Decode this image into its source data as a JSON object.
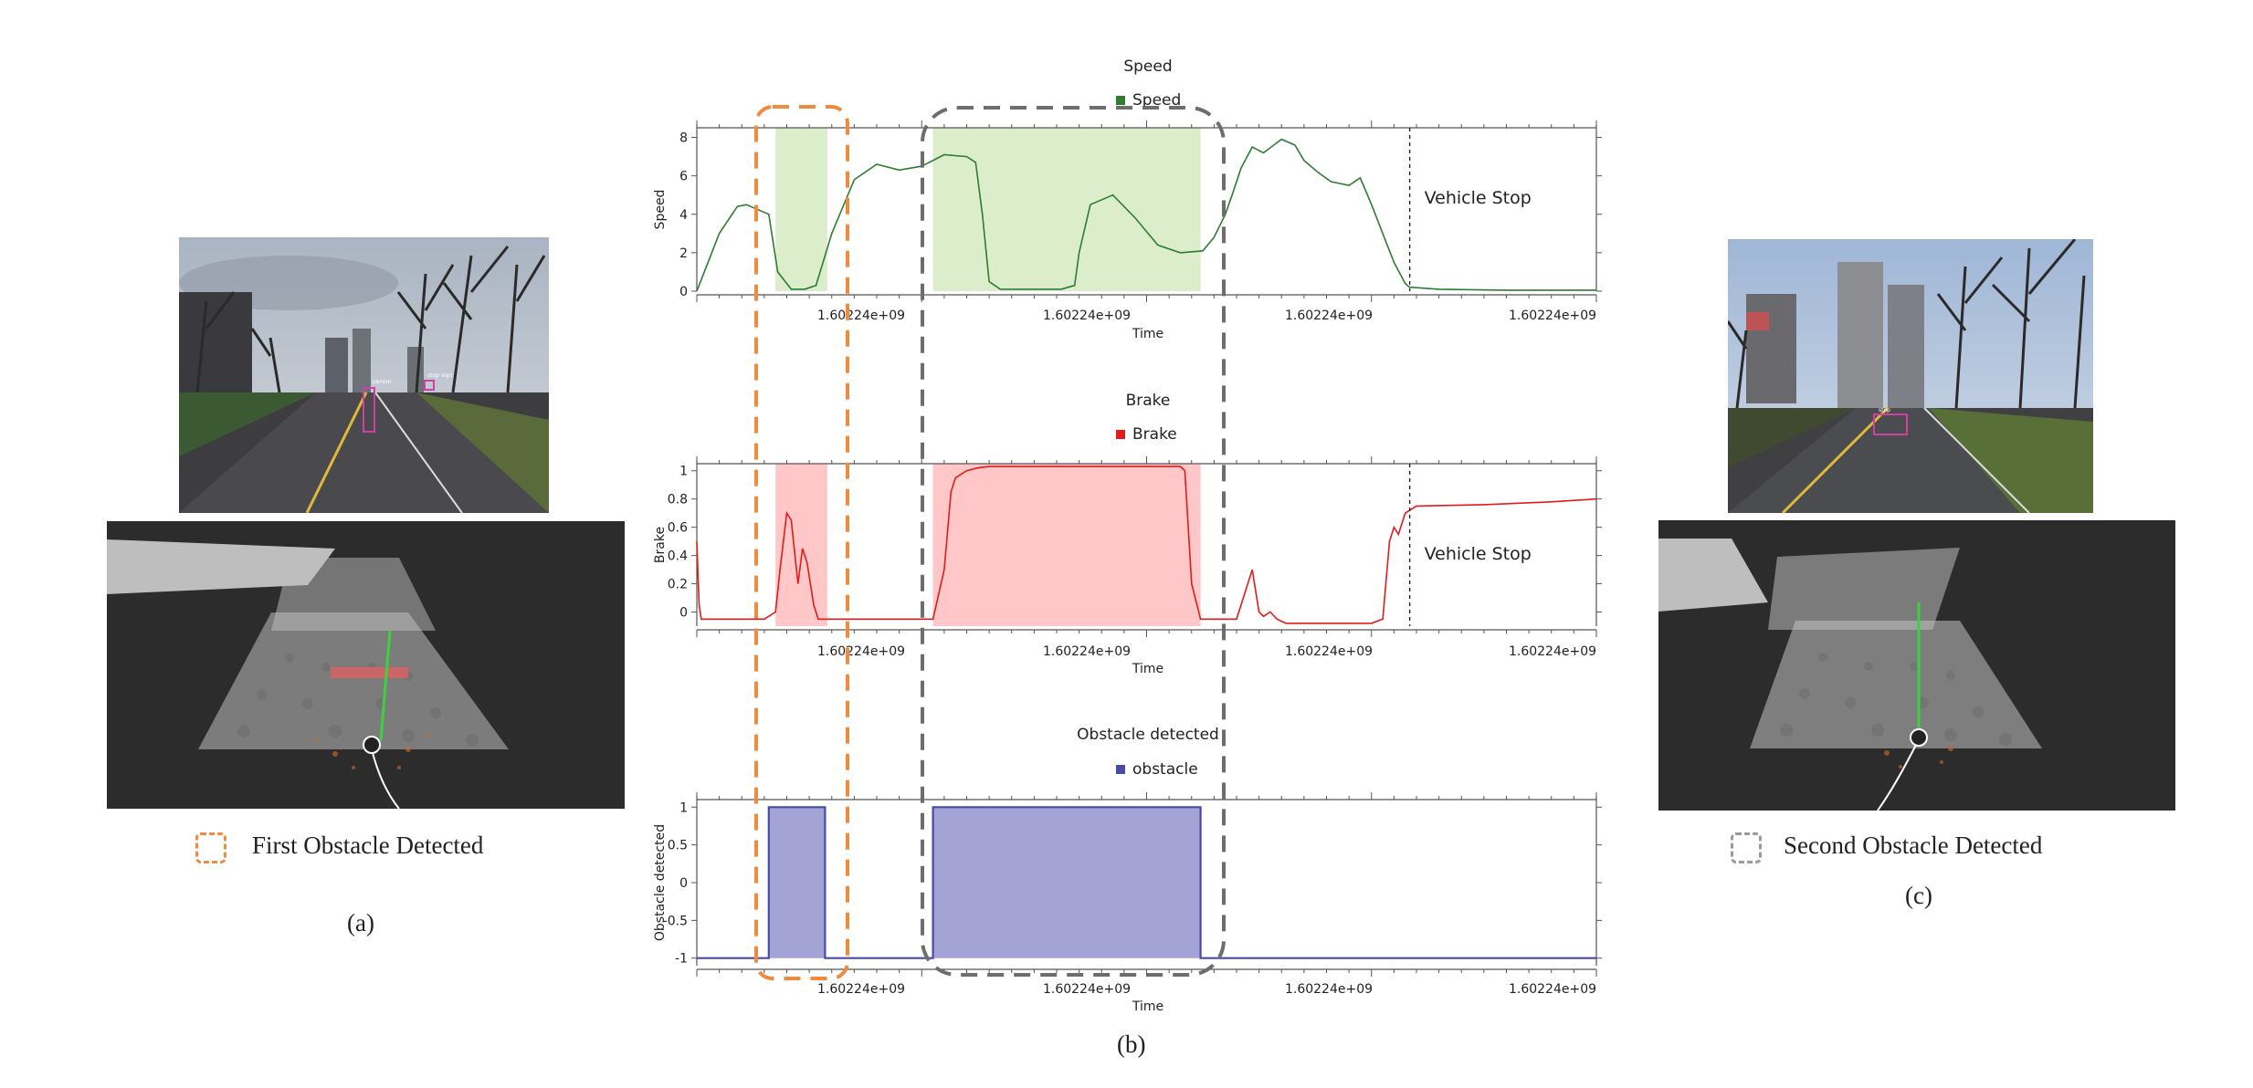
{
  "captions": {
    "a": "(a)",
    "b": "(b)",
    "c": "(c)",
    "first": "First Obstacle Detected",
    "second": "Second Obstacle Detected"
  },
  "camera_labels": {
    "left_person": "person",
    "left_sign": "stop sign",
    "right_obj": "stop"
  },
  "colors": {
    "speed": "#2e7d32",
    "speed_fill": "#d9ecc8",
    "brake": "#e21b1b",
    "brake_fill": "#ffc4c4",
    "obstacle": "#4a4aa8",
    "obstacle_fill": "#a3a3d6",
    "first_box": "#f08a3c",
    "second_box": "#6d6d6d"
  },
  "chart_data": [
    {
      "type": "line",
      "title": "Speed",
      "legend": "Speed",
      "xlabel": "Time",
      "ylabel": "Speed",
      "ylim": [
        0,
        8.5
      ],
      "yticks": [
        "0",
        "2",
        "4",
        "6",
        "8"
      ],
      "xticks": [
        "1.60224e+09",
        "1.60224e+09",
        "1.60224e+09",
        "1.60224e+09"
      ],
      "annotation": "Vehicle Stop",
      "x": [
        0,
        0.05,
        0.1,
        0.18,
        0.22,
        0.32,
        0.36,
        0.42,
        0.48,
        0.53,
        0.6,
        0.7,
        0.8,
        0.9,
        1.0,
        1.1,
        1.2,
        1.24,
        1.27,
        1.3,
        1.35,
        1.4,
        1.45,
        1.5,
        1.55,
        1.62,
        1.68,
        1.7,
        1.75,
        1.85,
        1.95,
        2.05,
        2.15,
        2.25,
        2.3,
        2.35,
        2.38,
        2.42,
        2.47,
        2.52,
        2.6,
        2.66,
        2.7,
        2.76,
        2.82,
        2.9,
        2.95,
        3.0,
        3.05,
        3.1,
        3.15,
        3.17,
        3.18,
        3.3,
        3.6,
        4.0
      ],
      "y": [
        0,
        1.5,
        3.0,
        4.4,
        4.5,
        4.0,
        1.0,
        0.1,
        0.1,
        0.3,
        3.0,
        5.8,
        6.6,
        6.3,
        6.5,
        7.1,
        7.0,
        6.7,
        4.0,
        0.5,
        0.1,
        0.1,
        0.1,
        0.1,
        0.1,
        0.1,
        0.3,
        2.0,
        4.5,
        5.0,
        3.8,
        2.4,
        2.0,
        2.1,
        2.8,
        4.0,
        5.0,
        6.4,
        7.5,
        7.2,
        7.9,
        7.6,
        6.8,
        6.2,
        5.7,
        5.5,
        5.9,
        4.5,
        3.0,
        1.5,
        0.4,
        0.2,
        0.2,
        0.1,
        0.05,
        0.05
      ],
      "shaded": [
        [
          0.35,
          0.58
        ],
        [
          1.05,
          2.24
        ]
      ],
      "stop_x": 3.17
    },
    {
      "type": "line",
      "title": "Brake",
      "legend": "Brake",
      "xlabel": "Time",
      "ylabel": "Brake",
      "ylim": [
        -0.1,
        1.05
      ],
      "yticks": [
        "0",
        "0.2",
        "0.4",
        "0.6",
        "0.8",
        "1"
      ],
      "xticks": [
        "1.60224e+09",
        "1.60224e+09",
        "1.60224e+09",
        "1.60224e+09"
      ],
      "annotation": "Vehicle Stop",
      "x": [
        0,
        0.01,
        0.02,
        0.05,
        0.3,
        0.35,
        0.37,
        0.4,
        0.42,
        0.45,
        0.47,
        0.49,
        0.52,
        0.54,
        0.56,
        0.6,
        0.8,
        1.05,
        1.1,
        1.13,
        1.15,
        1.2,
        1.25,
        1.3,
        2.1,
        2.15,
        2.17,
        2.2,
        2.24,
        2.28,
        2.4,
        2.45,
        2.47,
        2.5,
        2.52,
        2.55,
        2.58,
        2.62,
        2.7,
        3.0,
        3.05,
        3.08,
        3.1,
        3.12,
        3.15,
        3.2,
        3.5,
        3.8,
        4.0
      ],
      "y": [
        0.5,
        0.05,
        -0.05,
        -0.05,
        -0.05,
        0.0,
        0.3,
        0.7,
        0.65,
        0.2,
        0.45,
        0.35,
        0.05,
        -0.05,
        -0.05,
        -0.05,
        -0.05,
        -0.05,
        0.3,
        0.85,
        0.95,
        1.0,
        1.02,
        1.03,
        1.03,
        1.03,
        1.0,
        0.2,
        -0.05,
        -0.05,
        -0.05,
        0.2,
        0.3,
        0.0,
        -0.03,
        0.0,
        -0.05,
        -0.08,
        -0.08,
        -0.08,
        -0.05,
        0.5,
        0.6,
        0.55,
        0.7,
        0.75,
        0.76,
        0.78,
        0.8
      ],
      "shaded": [
        [
          0.35,
          0.58
        ],
        [
          1.05,
          2.24
        ]
      ],
      "stop_x": 3.17
    },
    {
      "type": "line",
      "title": "Obstacle detected",
      "legend": "obstacle",
      "xlabel": "Time",
      "ylabel": "Obstacle detected",
      "ylim": [
        -1.1,
        1.1
      ],
      "yticks": [
        "-1",
        "-0.5",
        "0",
        "0.5",
        "1"
      ],
      "xticks": [
        "1.60224e+09",
        "1.60224e+09",
        "1.60224e+09",
        "1.60224e+09"
      ],
      "x": [
        0,
        0.32,
        0.32,
        0.57,
        0.57,
        1.05,
        1.05,
        2.24,
        2.24,
        4.0
      ],
      "y": [
        -1,
        -1,
        1,
        1,
        -1,
        -1,
        1,
        1,
        -1,
        -1
      ],
      "shaded": [
        [
          0.32,
          0.57
        ],
        [
          1.05,
          2.24
        ]
      ]
    }
  ]
}
